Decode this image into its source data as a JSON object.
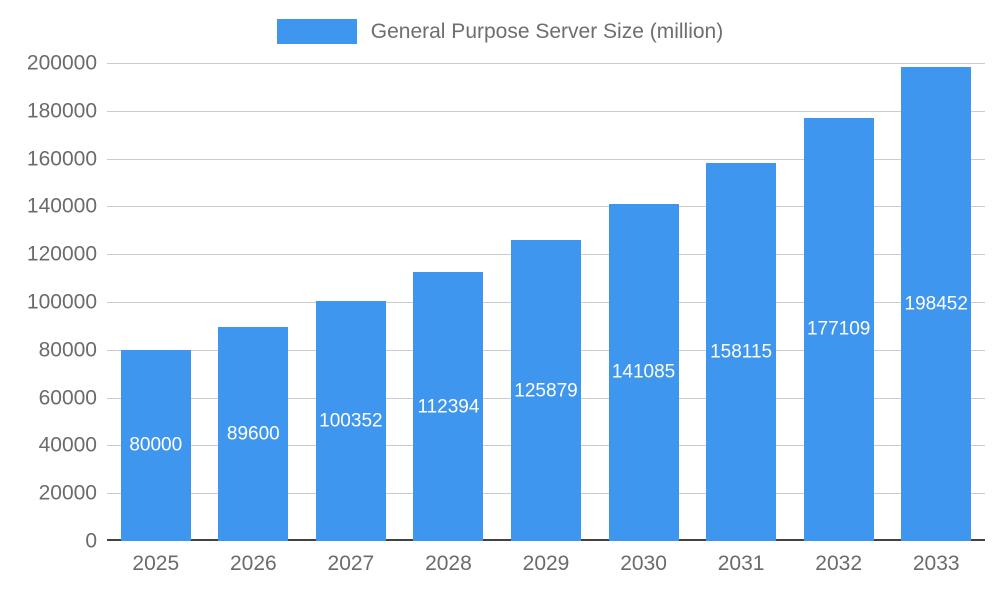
{
  "chart_data": {
    "type": "bar",
    "title": "General Purpose Server Size (million)",
    "categories": [
      "2025",
      "2026",
      "2027",
      "2028",
      "2029",
      "2030",
      "2031",
      "2032",
      "2033"
    ],
    "values": [
      80000,
      89600,
      100352,
      112394,
      125879,
      141085,
      158115,
      177109,
      198452
    ],
    "xlabel": "",
    "ylabel": "",
    "ylim": [
      0,
      200000
    ],
    "yticks": [
      0,
      20000,
      40000,
      60000,
      80000,
      100000,
      120000,
      140000,
      160000,
      180000,
      200000
    ],
    "grid": true,
    "legend_position": "top",
    "value_labels": "inside-center-white"
  },
  "legend": {
    "label": "General Purpose Server Size (million)"
  },
  "colors": {
    "bar": "#3E96EE",
    "grid": "#cccccc",
    "baseline": "#424242",
    "axis_text": "#6b6b6b",
    "legend_text": "#6e6e6e",
    "value_label": "#ffffff",
    "background": "#ffffff"
  }
}
